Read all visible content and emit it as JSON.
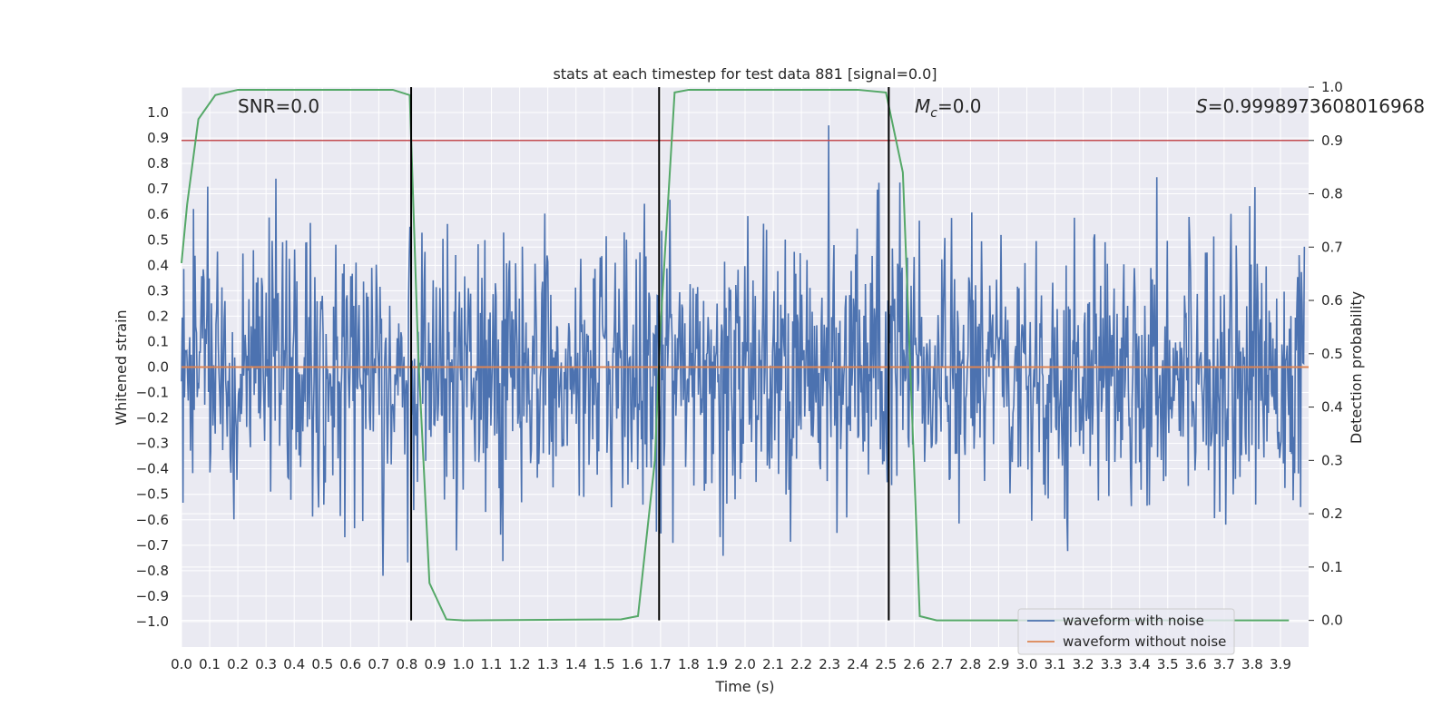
{
  "chart_data": {
    "type": "line",
    "title": "stats at each timestep for test data 881 [signal=0.0]",
    "xlabel": "Time (s)",
    "ylabel_left": "Whitened strain",
    "ylabel_right": "Detection probability",
    "xlim": [
      0.0,
      4.0
    ],
    "ylim_left": [
      -1.1,
      1.1
    ],
    "ylim_right": [
      -0.05,
      1.0
    ],
    "x_ticks": [
      "0.0",
      "0.1",
      "0.2",
      "0.3",
      "0.4",
      "0.5",
      "0.6",
      "0.7",
      "0.8",
      "0.9",
      "1.0",
      "1.1",
      "1.2",
      "1.3",
      "1.4",
      "1.5",
      "1.6",
      "1.7",
      "1.8",
      "1.9",
      "2.0",
      "2.1",
      "2.2",
      "2.3",
      "2.4",
      "2.5",
      "2.6",
      "2.7",
      "2.8",
      "2.9",
      "3.0",
      "3.1",
      "3.2",
      "3.3",
      "3.4",
      "3.5",
      "3.6",
      "3.7",
      "3.8",
      "3.9"
    ],
    "y_ticks_left": [
      "1.0",
      "0.9",
      "0.8",
      "0.7",
      "0.6",
      "0.5",
      "0.4",
      "0.3",
      "0.2",
      "0.1",
      "0.0",
      "-0.1",
      "-0.2",
      "-0.3",
      "-0.4",
      "-0.5",
      "-0.6",
      "-0.7",
      "-0.8",
      "-0.9",
      "-1.0"
    ],
    "y_ticks_right": [
      "1.0",
      "0.9",
      "0.8",
      "0.7",
      "0.6",
      "0.5",
      "0.4",
      "0.3",
      "0.2",
      "0.1",
      "0.0"
    ],
    "annotations": {
      "snr": "SNR=0.0",
      "mc_symbol": "M",
      "mc_sub": "c",
      "mc_value": "=0.0",
      "s_symbol": "S",
      "s_value": "=0.9998973608016968"
    },
    "legend": [
      "waveform with noise",
      "waveform without noise"
    ],
    "threshold_right": 0.9,
    "vertical_lines_x": [
      0.815,
      1.695,
      2.51
    ],
    "detection_probability": {
      "x": [
        0.0,
        0.02,
        0.06,
        0.12,
        0.2,
        0.3,
        0.5,
        0.75,
        0.81,
        0.84,
        0.88,
        0.94,
        1.0,
        1.56,
        1.62,
        1.68,
        1.7,
        1.75,
        1.8,
        2.4,
        2.5,
        2.56,
        2.62,
        2.68,
        3.0,
        3.5,
        3.93
      ],
      "y": [
        0.67,
        0.78,
        0.94,
        0.985,
        0.995,
        0.995,
        0.995,
        0.995,
        0.985,
        0.5,
        0.07,
        0.002,
        0.0,
        0.002,
        0.008,
        0.3,
        0.55,
        0.99,
        0.995,
        0.995,
        0.99,
        0.84,
        0.008,
        0.0,
        0.0,
        0.0,
        0.0
      ]
    },
    "series": [
      {
        "name": "waveform with noise",
        "color": "#4c72b0",
        "generator": "noise",
        "n": 1500,
        "seed": 881
      },
      {
        "name": "waveform without noise",
        "color": "#dd8452",
        "y_constant": 0.0
      }
    ],
    "colors": {
      "background": "#eaeaf2",
      "grid": "#ffffff",
      "noise": "#4c72b0",
      "clean": "#dd8452",
      "probability": "#55a868",
      "threshold": "#c44e52",
      "vline": "#000000"
    }
  }
}
